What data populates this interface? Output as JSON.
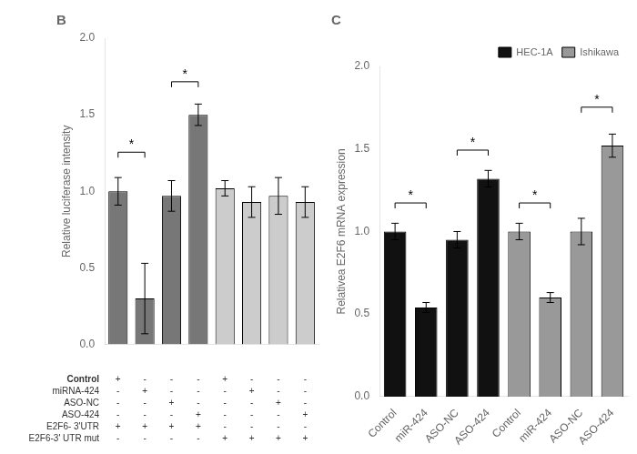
{
  "chart_data": [
    {
      "type": "bar",
      "title": "B",
      "categories": [
        null,
        null,
        null,
        null,
        null,
        null,
        null,
        null
      ],
      "values": [
        1.0,
        0.3,
        0.97,
        1.5,
        1.02,
        0.93,
        0.97,
        0.93
      ],
      "errors": [
        0.09,
        0.23,
        0.1,
        0.07,
        0.05,
        0.1,
        0.12,
        0.1
      ],
      "colors": [
        "#777777",
        "#777777",
        "#777777",
        "#777777",
        "#cccccc",
        "#cccccc",
        "#cccccc",
        "#cccccc"
      ],
      "ylabel": "Relative luciferase intensity",
      "ylim": [
        0,
        2.0
      ],
      "yticks": [
        {
          "value": 0,
          "label": "0.0"
        },
        0.5,
        {
          "value": 1,
          "label": "1.0"
        },
        1.5,
        {
          "value": 2,
          "label": "2.0"
        }
      ],
      "grid": false,
      "annotations": [
        {
          "text": "*",
          "from": 0,
          "to": 1,
          "y": 1.22
        },
        {
          "text": "*",
          "from": 2,
          "to": 3,
          "y": 1.68
        }
      ],
      "table": {
        "rows": [
          "Control",
          "miRNA-424",
          "ASO-NC",
          "ASO-424",
          "E2F6- 3'UTR",
          "E2F6-3' UTR mut"
        ],
        "cells": [
          [
            "+",
            "-",
            "-",
            "-",
            "+",
            "-",
            "-",
            "-"
          ],
          [
            "-",
            "+",
            "-",
            "-",
            "-",
            "+",
            "-",
            "-"
          ],
          [
            "-",
            "-",
            "+",
            "-",
            "-",
            "-",
            "+",
            "-"
          ],
          [
            "-",
            "-",
            "-",
            "+",
            "-",
            "-",
            "-",
            "+"
          ],
          [
            "+",
            "+",
            "+",
            "+",
            "-",
            "-",
            "-",
            "-"
          ],
          [
            "-",
            "-",
            "-",
            "-",
            "+",
            "+",
            "+",
            "+"
          ]
        ]
      }
    },
    {
      "type": "bar",
      "title": "C",
      "categories": [
        "Control",
        "miR-424",
        "ASO-NC",
        "ASO-424",
        "Control",
        "miR-424",
        "ASO-NC",
        "ASO-424"
      ],
      "series": [
        {
          "name": "HEC-1A",
          "color": "#111111",
          "values": [
            1.0,
            0.54,
            0.95,
            1.32,
            null,
            null,
            null,
            null
          ],
          "errors": [
            0.05,
            0.03,
            0.05,
            0.05,
            null,
            null,
            null,
            null
          ]
        },
        {
          "name": "Ishikawa",
          "color": "#999999",
          "values": [
            null,
            null,
            null,
            null,
            1.0,
            0.6,
            1.0,
            1.52
          ],
          "errors": [
            null,
            null,
            null,
            null,
            0.05,
            0.03,
            0.08,
            0.07
          ]
        }
      ],
      "ylabel": "Relativea E2F6 mRNA expression",
      "ylim": [
        0,
        2.0
      ],
      "yticks": [
        {
          "value": 0,
          "label": "0.0"
        },
        0.5,
        {
          "value": 1,
          "label": "1.0"
        },
        1.5,
        {
          "value": 2,
          "label": "2.0"
        }
      ],
      "grid": false,
      "legend": "upper right",
      "annotations": [
        {
          "text": "*",
          "from": 0,
          "to": 1,
          "y": 1.14
        },
        {
          "text": "*",
          "from": 2,
          "to": 3,
          "y": 1.46
        },
        {
          "text": "*",
          "from": 4,
          "to": 5,
          "y": 1.14
        },
        {
          "text": "*",
          "from": 6,
          "to": 7,
          "y": 1.72
        }
      ]
    }
  ]
}
